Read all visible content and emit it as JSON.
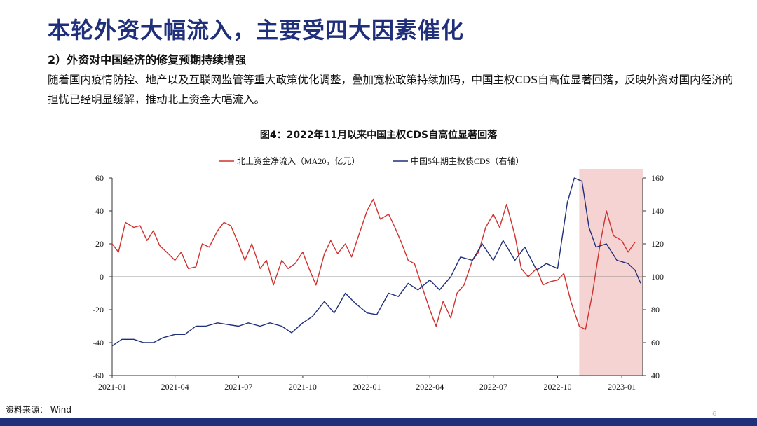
{
  "slide": {
    "title": "本轮外资大幅流入，主要受四大因素催化",
    "subtitle": "2）外资对中国经济的修复预期持续增强",
    "paragraph": "随着国内疫情防控、地产以及互联网监管等重大政策优化调整，叠加宽松政策持续加码，中国主权CDS自高位显著回落，反映外资对国内经济的担忧已经明显缓解，推动北上资金大幅流入。",
    "figure_title": "图4：2022年11月以来中国主权CDS自高位显著回落",
    "source": "资料来源： Wind",
    "page_number": "6"
  },
  "colors": {
    "brand": "#1f2f7a",
    "series_red": "#d0312d",
    "series_blue": "#1f2f7a",
    "highlight": "#f5d3d3"
  },
  "chart_data": {
    "type": "line",
    "legend_position": "top",
    "x_ticks": [
      "2021-01",
      "2021-04",
      "2021-07",
      "2021-10",
      "2022-01",
      "2022-04",
      "2022-07",
      "2022-10",
      "2023-01"
    ],
    "x_range": [
      "2021-01-01",
      "2023-01-31"
    ],
    "y_left": {
      "range": [
        -60,
        60
      ],
      "ticks": [
        60,
        40,
        20,
        0,
        -20,
        -40,
        -60
      ]
    },
    "y_right": {
      "range": [
        40,
        160
      ],
      "ticks": [
        160,
        140,
        120,
        100,
        80,
        60,
        40
      ]
    },
    "highlight_range": [
      "2022-11-01",
      "2023-01-31"
    ],
    "series": [
      {
        "name": "北上资金净流入（MA20，亿元）",
        "axis": "left",
        "color": "#d0312d",
        "points": [
          [
            "2021-01-01",
            20
          ],
          [
            "2021-01-10",
            15
          ],
          [
            "2021-01-20",
            33
          ],
          [
            "2021-02-01",
            30
          ],
          [
            "2021-02-10",
            31
          ],
          [
            "2021-02-20",
            22
          ],
          [
            "2021-03-01",
            28
          ],
          [
            "2021-03-10",
            19
          ],
          [
            "2021-03-20",
            15
          ],
          [
            "2021-04-01",
            10
          ],
          [
            "2021-04-10",
            15
          ],
          [
            "2021-04-20",
            5
          ],
          [
            "2021-05-01",
            6
          ],
          [
            "2021-05-10",
            20
          ],
          [
            "2021-05-20",
            18
          ],
          [
            "2021-06-01",
            28
          ],
          [
            "2021-06-10",
            33
          ],
          [
            "2021-06-20",
            31
          ],
          [
            "2021-07-01",
            20
          ],
          [
            "2021-07-10",
            10
          ],
          [
            "2021-07-20",
            20
          ],
          [
            "2021-08-01",
            5
          ],
          [
            "2021-08-10",
            10
          ],
          [
            "2021-08-20",
            -5
          ],
          [
            "2021-09-01",
            10
          ],
          [
            "2021-09-10",
            5
          ],
          [
            "2021-09-20",
            8
          ],
          [
            "2021-10-01",
            15
          ],
          [
            "2021-10-10",
            5
          ],
          [
            "2021-10-20",
            -5
          ],
          [
            "2021-11-01",
            14
          ],
          [
            "2021-11-10",
            22
          ],
          [
            "2021-11-20",
            14
          ],
          [
            "2021-12-01",
            20
          ],
          [
            "2021-12-10",
            12
          ],
          [
            "2021-12-20",
            25
          ],
          [
            "2022-01-01",
            40
          ],
          [
            "2022-01-10",
            47
          ],
          [
            "2022-01-20",
            35
          ],
          [
            "2022-02-01",
            38
          ],
          [
            "2022-02-10",
            30
          ],
          [
            "2022-02-20",
            20
          ],
          [
            "2022-03-01",
            10
          ],
          [
            "2022-03-10",
            8
          ],
          [
            "2022-03-20",
            -5
          ],
          [
            "2022-04-01",
            -20
          ],
          [
            "2022-04-10",
            -30
          ],
          [
            "2022-04-20",
            -15
          ],
          [
            "2022-05-01",
            -25
          ],
          [
            "2022-05-10",
            -10
          ],
          [
            "2022-05-20",
            -5
          ],
          [
            "2022-06-01",
            10
          ],
          [
            "2022-06-10",
            15
          ],
          [
            "2022-06-20",
            30
          ],
          [
            "2022-07-01",
            38
          ],
          [
            "2022-07-10",
            30
          ],
          [
            "2022-07-20",
            44
          ],
          [
            "2022-08-01",
            25
          ],
          [
            "2022-08-10",
            5
          ],
          [
            "2022-08-20",
            0
          ],
          [
            "2022-09-01",
            5
          ],
          [
            "2022-09-10",
            -5
          ],
          [
            "2022-09-20",
            -3
          ],
          [
            "2022-10-01",
            -2
          ],
          [
            "2022-10-10",
            2
          ],
          [
            "2022-10-20",
            -15
          ],
          [
            "2022-11-01",
            -30
          ],
          [
            "2022-11-10",
            -32
          ],
          [
            "2022-11-20",
            -10
          ],
          [
            "2022-12-01",
            20
          ],
          [
            "2022-12-10",
            40
          ],
          [
            "2022-12-20",
            25
          ],
          [
            "2023-01-01",
            22
          ],
          [
            "2023-01-10",
            15
          ],
          [
            "2023-01-20",
            21
          ]
        ]
      },
      {
        "name": "中国5年期主权债CDS（右轴）",
        "axis": "right",
        "color": "#1f2f7a",
        "points": [
          [
            "2021-01-01",
            58
          ],
          [
            "2021-01-15",
            62
          ],
          [
            "2021-02-01",
            62
          ],
          [
            "2021-02-15",
            60
          ],
          [
            "2021-03-01",
            60
          ],
          [
            "2021-03-15",
            63
          ],
          [
            "2021-04-01",
            65
          ],
          [
            "2021-04-15",
            65
          ],
          [
            "2021-05-01",
            70
          ],
          [
            "2021-05-15",
            70
          ],
          [
            "2021-06-01",
            72
          ],
          [
            "2021-06-15",
            71
          ],
          [
            "2021-07-01",
            70
          ],
          [
            "2021-07-15",
            72
          ],
          [
            "2021-08-01",
            70
          ],
          [
            "2021-08-15",
            72
          ],
          [
            "2021-09-01",
            70
          ],
          [
            "2021-09-15",
            66
          ],
          [
            "2021-10-01",
            72
          ],
          [
            "2021-10-15",
            76
          ],
          [
            "2021-11-01",
            85
          ],
          [
            "2021-11-15",
            78
          ],
          [
            "2021-12-01",
            90
          ],
          [
            "2021-12-15",
            84
          ],
          [
            "2022-01-01",
            78
          ],
          [
            "2022-01-15",
            77
          ],
          [
            "2022-02-01",
            90
          ],
          [
            "2022-02-15",
            88
          ],
          [
            "2022-03-01",
            96
          ],
          [
            "2022-03-15",
            92
          ],
          [
            "2022-04-01",
            98
          ],
          [
            "2022-04-15",
            92
          ],
          [
            "2022-05-01",
            100
          ],
          [
            "2022-05-15",
            112
          ],
          [
            "2022-06-01",
            110
          ],
          [
            "2022-06-15",
            120
          ],
          [
            "2022-07-01",
            110
          ],
          [
            "2022-07-15",
            122
          ],
          [
            "2022-08-01",
            110
          ],
          [
            "2022-08-15",
            118
          ],
          [
            "2022-09-01",
            104
          ],
          [
            "2022-09-15",
            108
          ],
          [
            "2022-10-01",
            105
          ],
          [
            "2022-10-15",
            145
          ],
          [
            "2022-10-25",
            160
          ],
          [
            "2022-11-05",
            158
          ],
          [
            "2022-11-15",
            130
          ],
          [
            "2022-11-25",
            118
          ],
          [
            "2022-12-10",
            120
          ],
          [
            "2022-12-25",
            110
          ],
          [
            "2023-01-10",
            108
          ],
          [
            "2023-01-20",
            104
          ],
          [
            "2023-01-28",
            96
          ]
        ]
      }
    ]
  }
}
